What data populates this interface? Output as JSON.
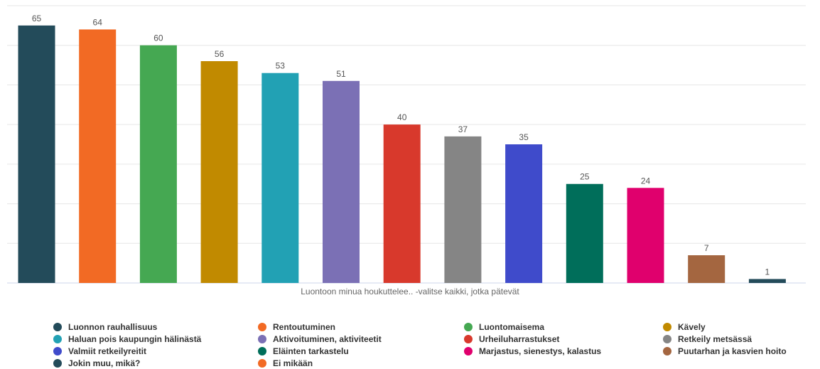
{
  "chart_data": {
    "type": "bar",
    "xlabel": "Luontoon minua houkuttelee.. -valitse kaikki, jotka pätevät",
    "ylabel": "",
    "ylim": [
      0,
      70
    ],
    "grid": true,
    "legend_position": "bottom",
    "categories": [
      "Luonnon rauhallisuus",
      "Rentoutuminen",
      "Luontomaisema",
      "Kävely",
      "Haluan pois kaupungin hälinästä",
      "Aktivoituminen, aktiviteetit",
      "Urheiluharrastukset",
      "Retkeily metsässä",
      "Valmiit retkeilyreitit",
      "Eläinten tarkastelu",
      "Marjastus, sienestys, kalastus",
      "Puutarhan ja kasvien hoito",
      "Jokin muu, mikä?",
      "Ei mikään"
    ],
    "values": [
      65,
      64,
      60,
      56,
      53,
      51,
      40,
      37,
      35,
      25,
      24,
      7,
      1,
      0
    ],
    "colors": [
      "#234b5a",
      "#f26a24",
      "#45a852",
      "#c18a00",
      "#22a1b4",
      "#7b70b5",
      "#d8392c",
      "#858585",
      "#3f4bcb",
      "#006e5a",
      "#e0006d",
      "#a46640",
      "#234b5a",
      "#f26a24"
    ]
  }
}
